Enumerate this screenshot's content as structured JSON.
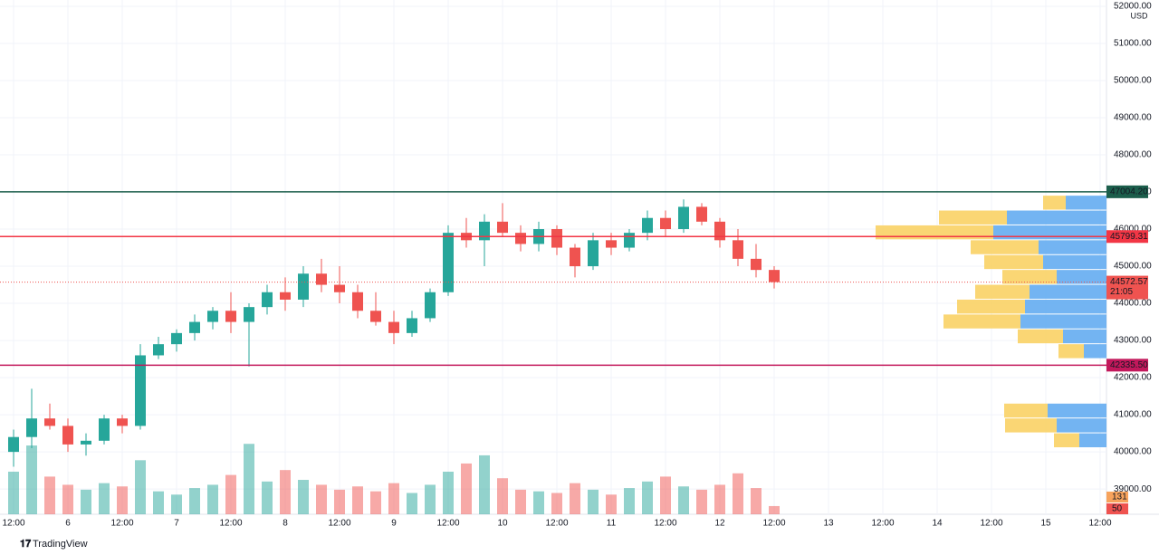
{
  "chart_data": {
    "type": "candlestick",
    "currency": "USD",
    "brand": "TradingView",
    "x": [
      0,
      4,
      8,
      12,
      16,
      20,
      24,
      28,
      32,
      36,
      40,
      44,
      48,
      52,
      56,
      60,
      64,
      68,
      72,
      76,
      80,
      84,
      88,
      92,
      96,
      100,
      104,
      108,
      112,
      116,
      120,
      124,
      128,
      132,
      136,
      140,
      144,
      148,
      152,
      156,
      160,
      164,
      168
    ],
    "open": [
      40000,
      40400,
      40900,
      40700,
      40200,
      40300,
      40900,
      40700,
      42600,
      42900,
      43200,
      43500,
      43800,
      43500,
      43900,
      44300,
      44100,
      44800,
      44500,
      44300,
      43800,
      43500,
      43200,
      43600,
      44300,
      45900,
      45700,
      46200,
      45900,
      45600,
      46000,
      45500,
      45000,
      45700,
      45500,
      45900,
      46300,
      46000,
      46600,
      46200,
      45700,
      45200,
      44900
    ],
    "high": [
      40600,
      41700,
      41300,
      40900,
      40500,
      41000,
      41000,
      42900,
      43100,
      43300,
      43700,
      43900,
      44300,
      44000,
      44500,
      44700,
      45000,
      45200,
      45000,
      44500,
      44300,
      43800,
      43800,
      44400,
      46100,
      46300,
      46400,
      46700,
      46100,
      46200,
      46100,
      45600,
      45900,
      45900,
      46000,
      46500,
      46500,
      46800,
      46700,
      46300,
      46000,
      45600,
      45000
    ],
    "low": [
      39600,
      40100,
      40600,
      40000,
      39900,
      40200,
      40500,
      40600,
      42500,
      42700,
      43000,
      43300,
      43200,
      42300,
      43700,
      43800,
      43900,
      44300,
      44000,
      43600,
      43400,
      42900,
      43100,
      43500,
      44200,
      45500,
      45000,
      45800,
      45400,
      45400,
      45300,
      44700,
      44900,
      45300,
      45400,
      45700,
      45800,
      45900,
      46100,
      45500,
      45000,
      44700,
      44400
    ],
    "close": [
      40400,
      40900,
      40700,
      40200,
      40300,
      40900,
      40700,
      42600,
      42900,
      43200,
      43500,
      43800,
      43500,
      43900,
      44300,
      44100,
      44800,
      44500,
      44300,
      43800,
      43500,
      43200,
      43600,
      44300,
      45900,
      45700,
      46200,
      45900,
      45600,
      46000,
      45500,
      45000,
      45700,
      45500,
      45900,
      46300,
      46000,
      46600,
      46200,
      45700,
      45200,
      44900,
      44572.57
    ],
    "volume": [
      260,
      420,
      230,
      180,
      150,
      190,
      170,
      330,
      140,
      120,
      160,
      180,
      240,
      430,
      200,
      270,
      210,
      180,
      150,
      170,
      140,
      190,
      130,
      180,
      260,
      310,
      360,
      220,
      150,
      140,
      130,
      190,
      150,
      120,
      160,
      200,
      230,
      170,
      150,
      180,
      250,
      160,
      50
    ],
    "volume_ma": 131,
    "volume_last": 50,
    "volume_lim": [
      0,
      470
    ],
    "up_color": "#26a69a",
    "down_color": "#ef5350",
    "xlim": [
      -3,
      241
    ],
    "ylim": [
      38320,
      52170
    ],
    "xticks": [
      {
        "value": 0,
        "label": "12:00"
      },
      {
        "value": 12,
        "label": "6"
      },
      {
        "value": 24,
        "label": "12:00"
      },
      {
        "value": 36,
        "label": "7"
      },
      {
        "value": 48,
        "label": "12:00"
      },
      {
        "value": 60,
        "label": "8"
      },
      {
        "value": 72,
        "label": "12:00"
      },
      {
        "value": 84,
        "label": "9"
      },
      {
        "value": 96,
        "label": "12:00"
      },
      {
        "value": 108,
        "label": "10"
      },
      {
        "value": 120,
        "label": "12:00"
      },
      {
        "value": 132,
        "label": "11"
      },
      {
        "value": 144,
        "label": "12:00"
      },
      {
        "value": 156,
        "label": "12"
      },
      {
        "value": 168,
        "label": "12:00"
      },
      {
        "value": 180,
        "label": "13"
      },
      {
        "value": 192,
        "label": "12:00"
      },
      {
        "value": 204,
        "label": "14"
      },
      {
        "value": 216,
        "label": "12:00"
      },
      {
        "value": 228,
        "label": "15"
      },
      {
        "value": 240,
        "label": "12:00"
      }
    ],
    "yticks": [
      {
        "value": 39000,
        "label": "39000.00"
      },
      {
        "value": 40000,
        "label": "40000.00"
      },
      {
        "value": 41000,
        "label": "41000.00"
      },
      {
        "value": 42000,
        "label": "42000.00"
      },
      {
        "value": 43000,
        "label": "43000.00"
      },
      {
        "value": 44000,
        "label": "44000.00"
      },
      {
        "value": 45000,
        "label": "45000.00"
      },
      {
        "value": 46000,
        "label": "46000.00"
      },
      {
        "value": 47000,
        "label": "47000.00"
      },
      {
        "value": 48000,
        "label": "48000.00"
      },
      {
        "value": 49000,
        "label": "49000.00"
      },
      {
        "value": 50000,
        "label": "50000.00"
      },
      {
        "value": 51000,
        "label": "51000.00"
      },
      {
        "value": 52000,
        "label": "52000.00"
      }
    ],
    "lines": [
      {
        "value": 47004.2,
        "label": "47004.20",
        "color": "#1b5e4b"
      },
      {
        "value": 45799.31,
        "label": "45799.31",
        "color": "#f23645"
      },
      {
        "value": 42335.5,
        "label": "42335.50",
        "color": "#c2185b"
      }
    ],
    "last_price": {
      "value": 44572.57,
      "label": "44572.57",
      "countdown": "21:05",
      "color": "#ef5350"
    },
    "profile": [
      {
        "low": 46500,
        "high": 46900,
        "up": 45,
        "down": 25
      },
      {
        "low": 46100,
        "high": 46500,
        "up": 110,
        "down": 75
      },
      {
        "low": 45700,
        "high": 46100,
        "up": 125,
        "down": 130
      },
      {
        "low": 45300,
        "high": 45700,
        "up": 75,
        "down": 75
      },
      {
        "low": 44900,
        "high": 45300,
        "up": 70,
        "down": 65
      },
      {
        "low": 44500,
        "high": 44900,
        "up": 55,
        "down": 60
      },
      {
        "low": 44100,
        "high": 44500,
        "up": 85,
        "down": 60
      },
      {
        "low": 43700,
        "high": 44100,
        "up": 90,
        "down": 75
      },
      {
        "low": 43300,
        "high": 43700,
        "up": 95,
        "down": 85
      },
      {
        "low": 42900,
        "high": 43300,
        "up": 48,
        "down": 50
      },
      {
        "low": 42500,
        "high": 42900,
        "up": 25,
        "down": 28
      },
      {
        "low": 40900,
        "high": 41300,
        "up": 65,
        "down": 48
      },
      {
        "low": 40500,
        "high": 40900,
        "up": 55,
        "down": 57
      },
      {
        "low": 40100,
        "high": 40500,
        "up": 30,
        "down": 28
      }
    ]
  }
}
